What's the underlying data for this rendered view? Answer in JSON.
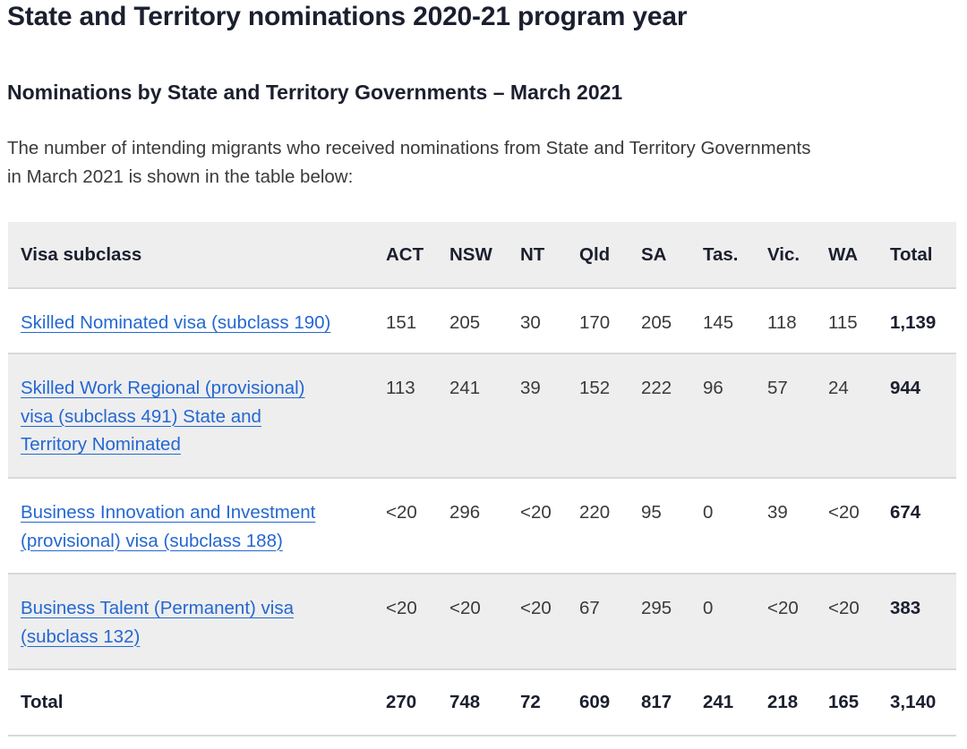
{
  "page_title": "State and Territory nominations 2020-21 program year",
  "section_heading": "Nominations by State and Territory Governments – March 2021",
  "intro": {
    "line1": "The number of intending migrants who received nominations from State and Territory Governments",
    "line2": "in March 2021 is shown in the table below:"
  },
  "table": {
    "headers": [
      "Visa subclass",
      "ACT",
      "NSW",
      "NT",
      "Qld",
      "SA",
      "Tas.",
      "Vic.",
      "WA",
      "Total"
    ],
    "rows": [
      {
        "visa_line1": "Skilled Nominated visa (subclass 190)",
        "visa_line2": "",
        "visa_line3": "",
        "values": [
          "151",
          "205",
          "30",
          "170",
          "205",
          "145",
          "118",
          "115",
          "1,139"
        ]
      },
      {
        "visa_line1": "Skilled Work Regional (provisional)",
        "visa_line2": "visa (subclass 491) State and",
        "visa_line3": "Territory Nominated",
        "values": [
          "113",
          "241",
          "39",
          "152",
          "222",
          "96",
          "57",
          "24",
          "944"
        ]
      },
      {
        "visa_line1": "Business Innovation and Investment",
        "visa_line2": "(provisional) visa (subclass 188)",
        "visa_line3": "",
        "values": [
          "<20",
          "296",
          "<20",
          "220",
          "95",
          "0",
          "39",
          "<20",
          "674"
        ]
      },
      {
        "visa_line1": "Business Talent (Permanent) visa",
        "visa_line2": "(subclass 132)",
        "visa_line3": "",
        "values": [
          "<20",
          "<20",
          "<20",
          "67",
          "295",
          "0",
          "<20",
          "<20",
          "383"
        ]
      }
    ],
    "total_row": {
      "label": "Total",
      "values": [
        "270",
        "748",
        "72",
        "609",
        "817",
        "241",
        "218",
        "165",
        "3,140"
      ]
    }
  },
  "colors": {
    "link": "#2467d3",
    "heading": "#1b1f2e",
    "shaded_row": "#eeeeee",
    "divider": "#d9d9d9"
  }
}
